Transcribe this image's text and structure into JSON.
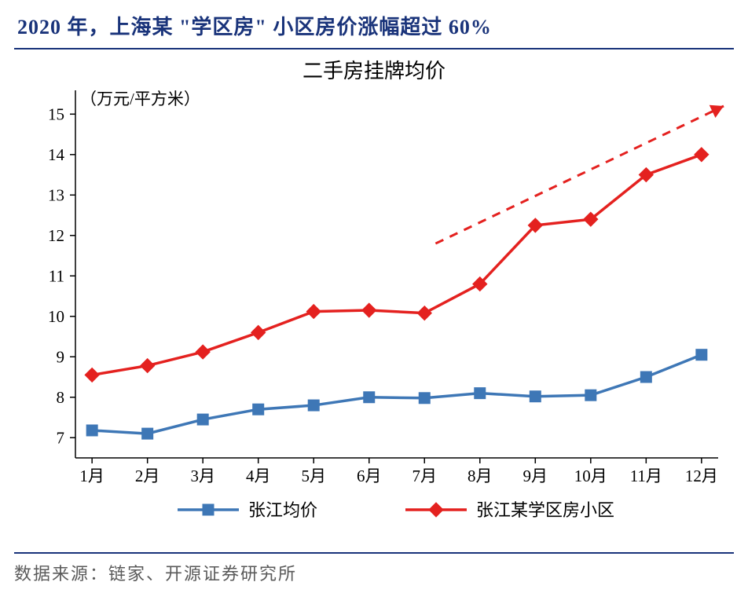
{
  "title": "2020 年，上海某 \"学区房\" 小区房价涨幅超过 60%",
  "source_label": "数据来源：链家、开源证券研究所",
  "chart": {
    "type": "line",
    "chart_title": "二手房挂牌均价",
    "unit_label": "（万元/平方米）",
    "x_labels": [
      "1月",
      "2月",
      "3月",
      "4月",
      "5月",
      "6月",
      "7月",
      "8月",
      "9月",
      "10月",
      "11月",
      "12月"
    ],
    "y_ticks": [
      7,
      8,
      9,
      10,
      11,
      12,
      13,
      14,
      15
    ],
    "ylim": [
      6.5,
      15.2
    ],
    "series": [
      {
        "name": "张江均价",
        "color": "#3e77b6",
        "marker": "square",
        "values": [
          7.18,
          7.1,
          7.45,
          7.7,
          7.8,
          8.0,
          7.98,
          8.1,
          8.02,
          8.05,
          8.5,
          9.05
        ]
      },
      {
        "name": "张江某学区房小区",
        "color": "#e4211f",
        "marker": "diamond",
        "values": [
          8.55,
          8.78,
          9.12,
          9.6,
          10.12,
          10.15,
          10.08,
          10.8,
          12.25,
          12.4,
          13.5,
          14.0
        ]
      }
    ],
    "legend": {
      "items": [
        "张江均价",
        "张江某学区房小区"
      ]
    },
    "arrow": {
      "start_x_index": 6.2,
      "start_y": 11.8,
      "end_x_index": 11.4,
      "end_y": 15.2
    },
    "background_color": "#ffffff",
    "title_color": "#19337a",
    "border_color": "#19337a",
    "axis_fontsize": 21,
    "title_fontsize": 26,
    "line_width": 3.5,
    "marker_size": 7
  }
}
